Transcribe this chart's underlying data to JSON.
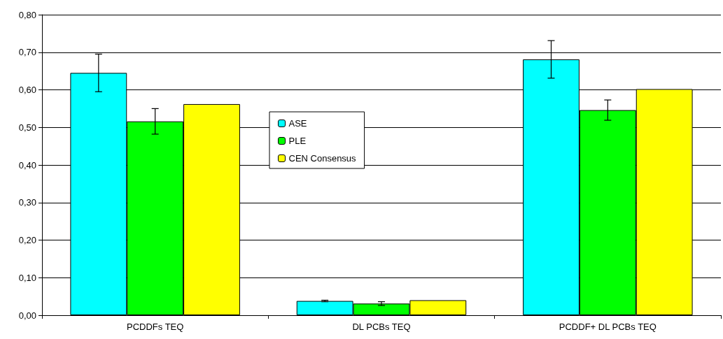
{
  "chart_data": {
    "type": "bar",
    "categories": [
      "PCDDFs TEQ",
      "DL PCBs TEQ",
      "PCDDF+ DL PCBs TEQ"
    ],
    "series": [
      {
        "name": "ASE",
        "color": "#00ffff",
        "values": [
          0.645,
          0.038,
          0.681
        ],
        "errors": [
          0.05,
          0.002,
          0.05
        ]
      },
      {
        "name": "PLE",
        "color": "#00ff00",
        "values": [
          0.516,
          0.031,
          0.546
        ],
        "errors": [
          0.034,
          0.005,
          0.027
        ]
      },
      {
        "name": "CEN Consensus",
        "color": "#ffff00",
        "values": [
          0.562,
          0.04,
          0.602
        ]
      }
    ],
    "ylim": [
      0,
      0.8
    ],
    "yticks": [
      {
        "value": 0,
        "label": "0,00"
      },
      {
        "value": 0.1,
        "label": "0,10"
      },
      {
        "value": 0.2,
        "label": "0,20"
      },
      {
        "value": 0.3,
        "label": "0,30"
      },
      {
        "value": 0.4,
        "label": "0,40"
      },
      {
        "value": 0.5,
        "label": "0,50"
      },
      {
        "value": 0.6,
        "label": "0,60"
      },
      {
        "value": 0.7,
        "label": "0,70"
      },
      {
        "value": 0.8,
        "label": "0,80"
      }
    ],
    "grid": "y",
    "legend": "center"
  }
}
